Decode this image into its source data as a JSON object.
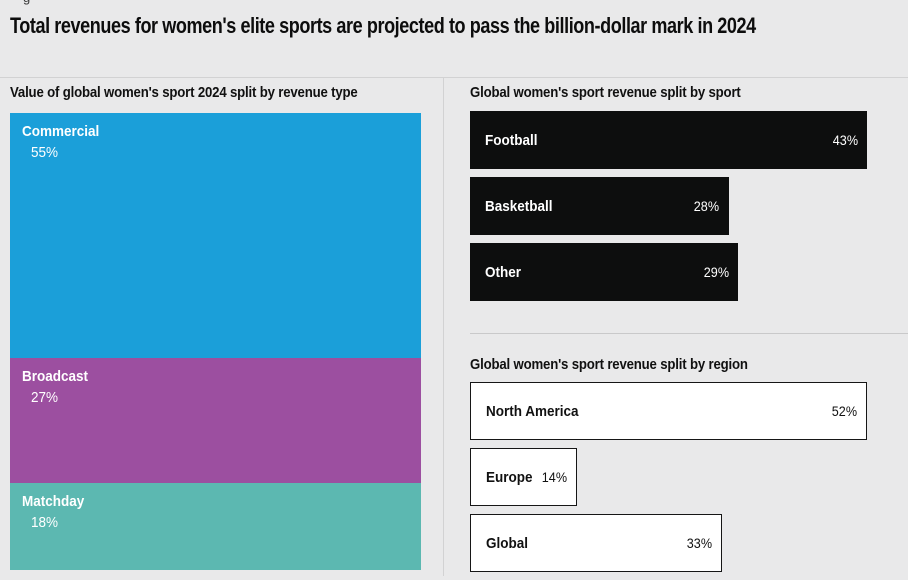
{
  "header": {
    "title": "Total revenues for women's elite sports are projected to pass the billion-dollar mark in 2024",
    "cropped_text_fragment": "g"
  },
  "colors": {
    "background": "#e9e9ea",
    "rule": "#d2d2d3",
    "bar_dark": "#0d0e0e",
    "bar_outline": "#161616",
    "text_dark": "#0d0d0d",
    "text_light": "#ffffff",
    "commercial_blue": "#1b9fd9",
    "broadcast_purple": "#9c4fa0",
    "matchday_teal": "#5cb8b1"
  },
  "chart_data": [
    {
      "id": "revenue_type",
      "type": "bar",
      "variant": "stacked-vertical-percentage",
      "title": "Value of global women's sport 2024 split by revenue type",
      "categories": [
        "Commercial",
        "Broadcast",
        "Matchday"
      ],
      "values": [
        55,
        27,
        18
      ],
      "unit": "%",
      "legend_position": "labels-inside-segments",
      "items": [
        {
          "label": "Commercial",
          "value": 55,
          "value_label": "55%",
          "color": "#1b9fd9"
        },
        {
          "label": "Broadcast",
          "value": 27,
          "value_label": "27%",
          "color": "#9c4fa0"
        },
        {
          "label": "Matchday",
          "value": 18,
          "value_label": "18%",
          "color": "#5cb8b1"
        }
      ]
    },
    {
      "id": "by_sport",
      "type": "bar",
      "variant": "horizontal-solid-black",
      "title": "Global women's sport revenue split by sport",
      "categories": [
        "Football",
        "Basketball",
        "Other"
      ],
      "values": [
        43,
        28,
        29
      ],
      "unit": "%",
      "legend_position": "labels-inside-bars",
      "items": [
        {
          "label": "Football",
          "value": 43,
          "value_label": "43%"
        },
        {
          "label": "Basketball",
          "value": 28,
          "value_label": "28%"
        },
        {
          "label": "Other",
          "value": 29,
          "value_label": "29%"
        }
      ]
    },
    {
      "id": "by_region",
      "type": "bar",
      "variant": "horizontal-white-outlined",
      "title": "Global women's sport revenue split by region",
      "categories": [
        "North America",
        "Europe",
        "Global"
      ],
      "values": [
        52,
        14,
        33
      ],
      "unit": "%",
      "legend_position": "labels-inside-bars",
      "items": [
        {
          "label": "North America",
          "value": 52,
          "value_label": "52%"
        },
        {
          "label": "Europe",
          "value": 14,
          "value_label": "14%"
        },
        {
          "label": "Global",
          "value": 33,
          "value_label": "33%"
        }
      ]
    }
  ]
}
